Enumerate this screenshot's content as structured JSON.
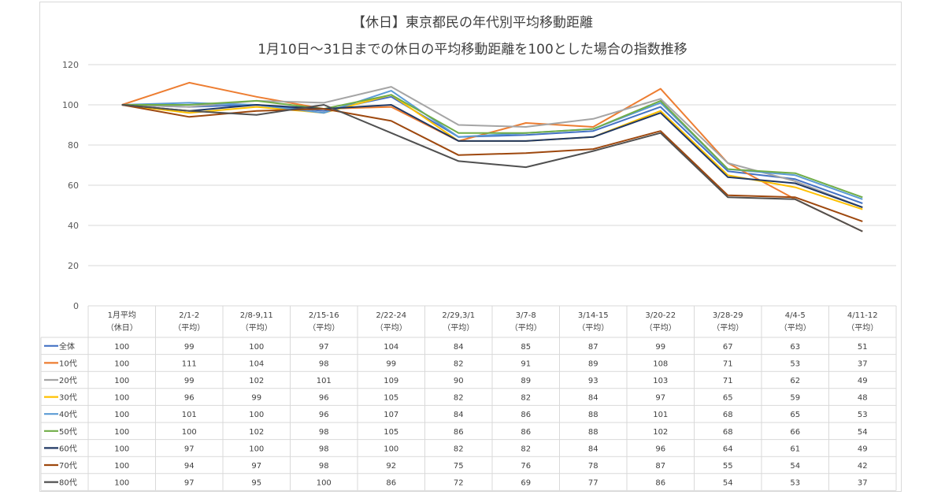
{
  "chart_data": {
    "type": "line",
    "title": "【休日】東京都民の年代別平均移動距離",
    "subtitle": "1月10日～31日までの休日の平均移動距離を100とした場合の指数推移",
    "ylim": [
      0,
      120
    ],
    "yticks": [
      0,
      20,
      40,
      60,
      80,
      100,
      120
    ],
    "grid": true,
    "legend": "data-table",
    "categories": [
      [
        "1月平均",
        "（休日）"
      ],
      [
        "2/1-2",
        "（平均）"
      ],
      [
        "2/8-9,11",
        "（平均）"
      ],
      [
        "2/15-16",
        "（平均）"
      ],
      [
        "2/22-24",
        "（平均）"
      ],
      [
        "2/29,3/1",
        "（平均）"
      ],
      [
        "3/7-8",
        "（平均）"
      ],
      [
        "3/14-15",
        "（平均）"
      ],
      [
        "3/20-22",
        "（平均）"
      ],
      [
        "3/28-29",
        "（平均）"
      ],
      [
        "4/4-5",
        "（平均）"
      ],
      [
        "4/11-12",
        "（平均）"
      ]
    ],
    "series": [
      {
        "name": "全体",
        "color": "#4472C4",
        "values": [
          100,
          99,
          100,
          97,
          104,
          84,
          85,
          87,
          99,
          67,
          63,
          51
        ]
      },
      {
        "name": "10代",
        "color": "#ED7D31",
        "values": [
          100,
          111,
          104,
          98,
          99,
          82,
          91,
          89,
          108,
          71,
          53,
          37
        ]
      },
      {
        "name": "20代",
        "color": "#A5A5A5",
        "values": [
          100,
          99,
          102,
          101,
          109,
          90,
          89,
          93,
          103,
          71,
          62,
          49
        ]
      },
      {
        "name": "30代",
        "color": "#FFC000",
        "values": [
          100,
          96,
          99,
          96,
          105,
          82,
          82,
          84,
          97,
          65,
          59,
          48
        ]
      },
      {
        "name": "40代",
        "color": "#5B9BD5",
        "values": [
          100,
          101,
          100,
          96,
          107,
          84,
          86,
          88,
          101,
          68,
          65,
          53
        ]
      },
      {
        "name": "50代",
        "color": "#70AD47",
        "values": [
          100,
          100,
          102,
          98,
          105,
          86,
          86,
          88,
          102,
          68,
          66,
          54
        ]
      },
      {
        "name": "60代",
        "color": "#203864",
        "values": [
          100,
          97,
          100,
          98,
          100,
          82,
          82,
          84,
          96,
          64,
          61,
          49
        ]
      },
      {
        "name": "70代",
        "color": "#9E480E",
        "values": [
          100,
          94,
          97,
          98,
          92,
          75,
          76,
          78,
          87,
          55,
          54,
          42
        ]
      },
      {
        "name": "80代",
        "color": "#505050",
        "values": [
          100,
          97,
          95,
          100,
          86,
          72,
          69,
          77,
          86,
          54,
          53,
          37
        ]
      }
    ]
  }
}
